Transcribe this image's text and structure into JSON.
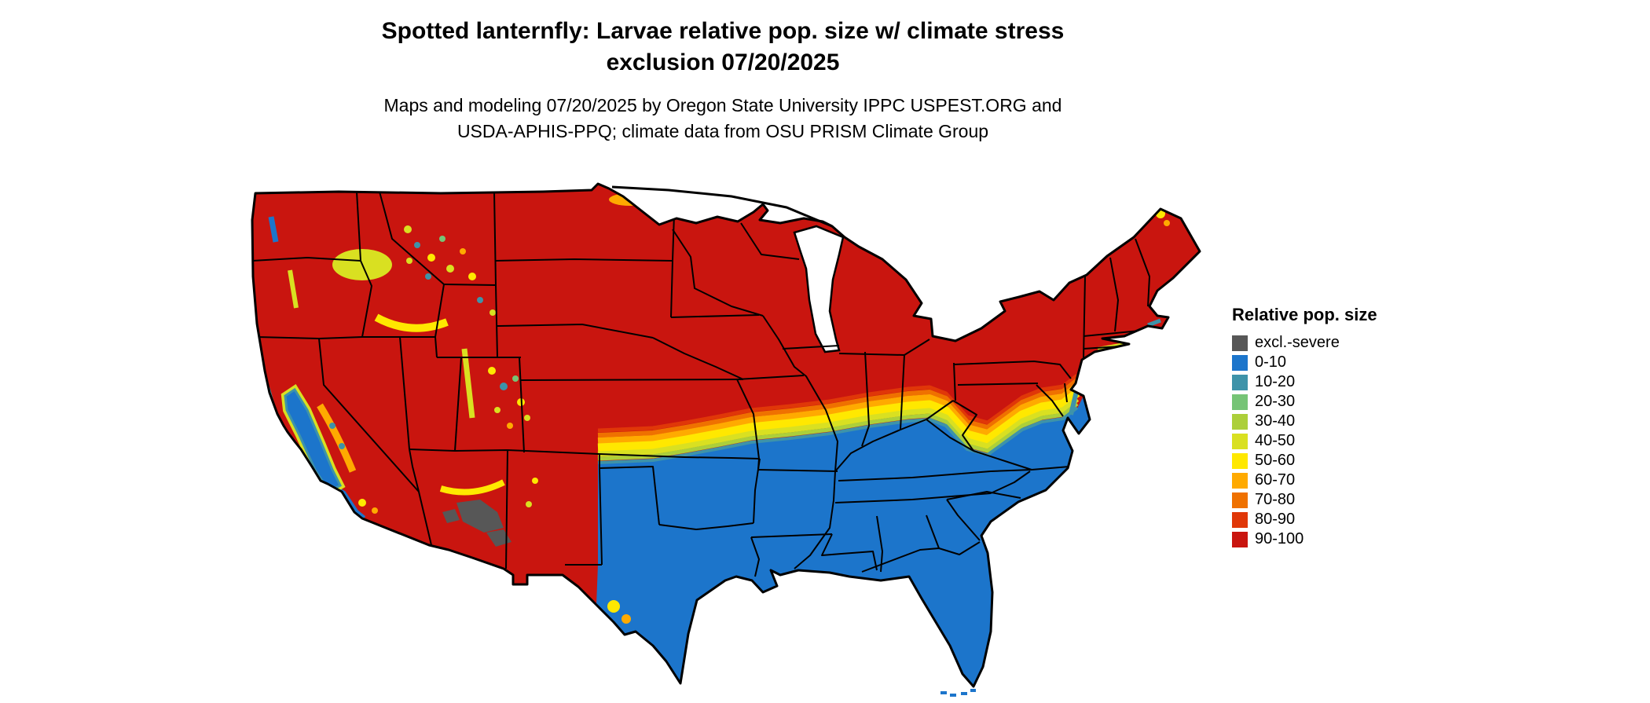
{
  "title": {
    "line1": "Spotted lanternfly: Larvae relative pop. size w/ climate stress",
    "line2": "exclusion 07/20/2025"
  },
  "subtitle": {
    "line1": "Maps and modeling 07/20/2025 by Oregon State University IPPC USPEST.ORG and",
    "line2": "USDA-APHIS-PPQ; climate data from OSU PRISM Climate Group"
  },
  "legend": {
    "title": "Relative pop. size",
    "items": [
      {
        "label": "excl.-severe",
        "key": "excl"
      },
      {
        "label": "0-10",
        "key": "b0"
      },
      {
        "label": "10-20",
        "key": "b10"
      },
      {
        "label": "20-30",
        "key": "b20"
      },
      {
        "label": "30-40",
        "key": "b30"
      },
      {
        "label": "40-50",
        "key": "b40"
      },
      {
        "label": "50-60",
        "key": "b50"
      },
      {
        "label": "60-70",
        "key": "b60"
      },
      {
        "label": "70-80",
        "key": "b70"
      },
      {
        "label": "80-90",
        "key": "b80"
      },
      {
        "label": "90-100",
        "key": "b90"
      }
    ]
  },
  "colors": {
    "excl": "#575757",
    "b0": "#1c75cb",
    "b10": "#3e93a9",
    "b20": "#76c476",
    "b30": "#accf3a",
    "b40": "#d9e021",
    "b50": "#ffe800",
    "b60": "#ffaa00",
    "b70": "#ef7100",
    "b80": "#e03708",
    "b90": "#c9150f",
    "border": "#000000",
    "water": "#ffffff",
    "background": "#ffffff"
  }
}
